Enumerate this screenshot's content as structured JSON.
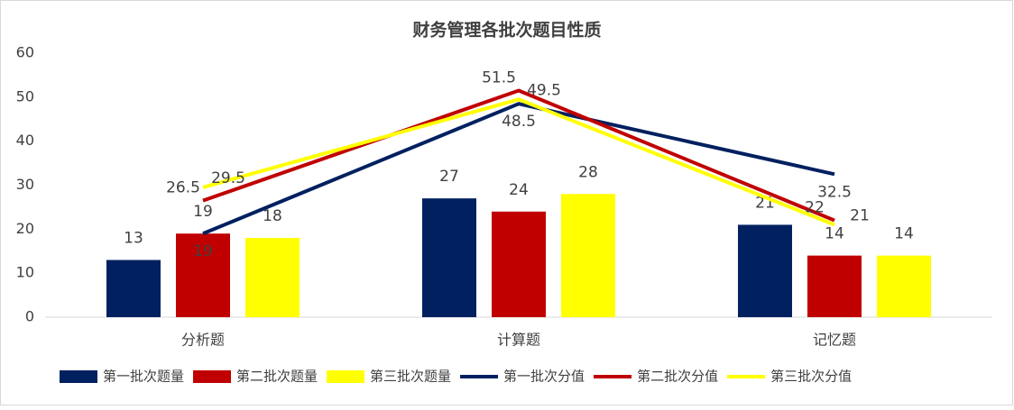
{
  "chart_data": {
    "type": "combo",
    "title": "财务管理各批次题目性质",
    "categories": [
      "分析题",
      "计算题",
      "记忆题"
    ],
    "series": [
      {
        "name": "第一批次题量",
        "type": "bar",
        "color": "#002060",
        "values": [
          13,
          27,
          21
        ]
      },
      {
        "name": "第二批次题量",
        "type": "bar",
        "color": "#c00000",
        "values": [
          19,
          24,
          14
        ]
      },
      {
        "name": "第三批次题量",
        "type": "bar",
        "color": "#ffff00",
        "values": [
          18,
          28,
          14
        ]
      },
      {
        "name": "第一批次分值",
        "type": "line",
        "color": "#002060",
        "values": [
          19,
          48.5,
          32.5
        ]
      },
      {
        "name": "第二批次分值",
        "type": "line",
        "color": "#c00000",
        "values": [
          26.5,
          51.5,
          22
        ]
      },
      {
        "name": "第三批次分值",
        "type": "line",
        "color": "#ffff00",
        "values": [
          29.5,
          49.5,
          21
        ]
      }
    ],
    "ylim": [
      0,
      60
    ],
    "yticks": [
      0,
      10,
      20,
      30,
      40,
      50,
      60
    ],
    "grid": false,
    "legend": "bottom"
  }
}
